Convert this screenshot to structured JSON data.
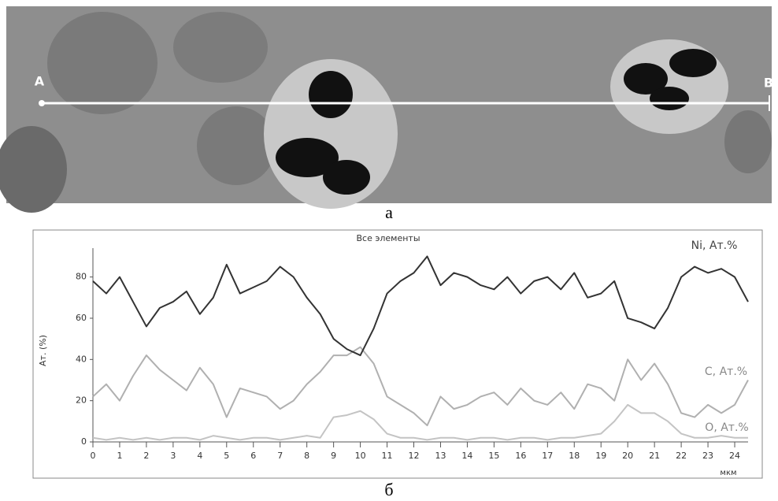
{
  "image_labels": {
    "start": "А",
    "end": "В"
  },
  "panel_labels": [
    "а",
    "б"
  ],
  "chart_data": {
    "type": "line",
    "title": "Все элементы",
    "y_label": "Ат. (%)",
    "x_label": "мкм",
    "x": [
      0,
      0.5,
      1,
      1.5,
      2,
      2.5,
      3,
      3.5,
      4,
      4.5,
      5,
      5.5,
      6,
      6.5,
      7,
      7.5,
      8,
      8.5,
      9,
      9.5,
      10,
      10.5,
      11,
      11.5,
      12,
      12.5,
      13,
      13.5,
      14,
      14.5,
      15,
      15.5,
      16,
      16.5,
      17,
      17.5,
      18,
      18.5,
      19,
      19.5,
      20,
      20.5,
      21,
      21.5,
      22,
      22.5,
      23,
      23.5,
      24,
      24.5
    ],
    "series": [
      {
        "name": "Ni, Ат.%",
        "color": "#333333",
        "values": [
          78,
          72,
          80,
          68,
          56,
          65,
          68,
          73,
          62,
          70,
          86,
          72,
          75,
          78,
          85,
          80,
          70,
          62,
          50,
          45,
          42,
          55,
          72,
          78,
          82,
          90,
          76,
          82,
          80,
          76,
          74,
          80,
          72,
          78,
          80,
          74,
          82,
          70,
          72,
          78,
          60,
          58,
          55,
          65,
          80,
          85,
          82,
          84,
          80,
          68
        ]
      },
      {
        "name": "C, Ат.%",
        "color": "#b0b0b0",
        "values": [
          22,
          28,
          20,
          32,
          42,
          35,
          30,
          25,
          36,
          28,
          12,
          26,
          24,
          22,
          16,
          20,
          28,
          34,
          42,
          42,
          46,
          38,
          22,
          18,
          14,
          8,
          22,
          16,
          18,
          22,
          24,
          18,
          26,
          20,
          18,
          24,
          16,
          28,
          26,
          20,
          40,
          30,
          38,
          28,
          14,
          12,
          18,
          14,
          18,
          30
        ]
      },
      {
        "name": "O, Ат.%",
        "color": "#c4c4c4",
        "values": [
          2,
          1,
          2,
          1,
          2,
          1,
          2,
          2,
          1,
          3,
          2,
          1,
          2,
          2,
          1,
          2,
          3,
          2,
          12,
          13,
          15,
          11,
          4,
          2,
          2,
          1,
          2,
          2,
          1,
          2,
          2,
          1,
          2,
          2,
          1,
          2,
          2,
          3,
          4,
          10,
          18,
          14,
          14,
          10,
          4,
          2,
          2,
          3,
          2,
          2
        ]
      }
    ],
    "xlim": [
      0,
      24.5
    ],
    "xticks": [
      0,
      1,
      2,
      3,
      4,
      5,
      6,
      7,
      8,
      9,
      10,
      11,
      12,
      13,
      14,
      15,
      16,
      17,
      18,
      19,
      20,
      21,
      22,
      23,
      24
    ],
    "ylim": [
      0,
      94
    ],
    "yticks": [
      0,
      20,
      40,
      60,
      80
    ],
    "grid": false
  }
}
